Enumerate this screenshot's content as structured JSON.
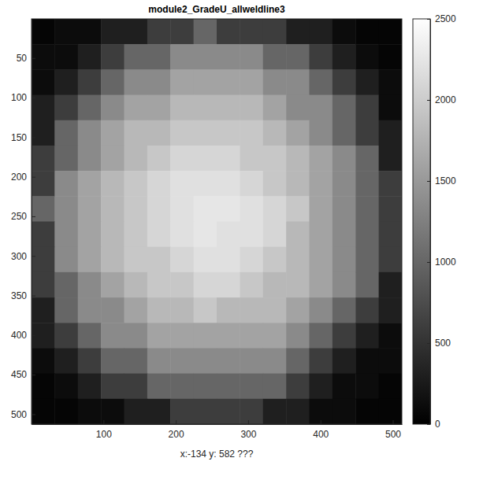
{
  "chart_data": {
    "type": "heatmap",
    "title": "module2_GradeU_allweldline3",
    "x_label": "x:-134 y: 582 ???",
    "xlim": [
      0.5,
      512.5
    ],
    "ylim": [
      0.5,
      512.5
    ],
    "xticks": [
      100,
      200,
      300,
      400,
      500
    ],
    "yticks": [
      50,
      100,
      150,
      200,
      250,
      300,
      350,
      400,
      450,
      500
    ],
    "x": [
      16.5,
      48.5,
      80.5,
      112.5,
      144.5,
      176.5,
      208.5,
      240.5,
      272.5,
      304.5,
      336.5,
      368.5,
      400.5,
      432.5,
      464.5,
      496.5
    ],
    "y": [
      16.5,
      48.5,
      80.5,
      112.5,
      144.5,
      176.5,
      208.5,
      240.5,
      272.5,
      304.5,
      336.5,
      368.5,
      400.5,
      432.5,
      464.5,
      496.5
    ],
    "cells": [
      [
        50,
        120,
        120,
        300,
        300,
        600,
        600,
        1000,
        600,
        600,
        600,
        300,
        300,
        120,
        50,
        50
      ],
      [
        120,
        120,
        300,
        600,
        1000,
        1000,
        1350,
        1350,
        1350,
        1350,
        1000,
        1000,
        600,
        300,
        120,
        50
      ],
      [
        120,
        300,
        600,
        1000,
        1350,
        1350,
        1600,
        1600,
        1600,
        1600,
        1350,
        1350,
        1000,
        600,
        300,
        120
      ],
      [
        300,
        600,
        1000,
        1350,
        1600,
        1600,
        1800,
        1800,
        1800,
        1800,
        1600,
        1350,
        1350,
        1000,
        600,
        120
      ],
      [
        300,
        1000,
        1350,
        1600,
        1800,
        1800,
        1950,
        1950,
        1950,
        1950,
        1800,
        1600,
        1350,
        1000,
        600,
        300
      ],
      [
        600,
        1000,
        1350,
        1600,
        1800,
        1950,
        2100,
        2100,
        2100,
        1950,
        1950,
        1800,
        1600,
        1350,
        1000,
        300
      ],
      [
        600,
        1350,
        1600,
        1800,
        1950,
        2100,
        2200,
        2200,
        2200,
        2100,
        1950,
        1800,
        1600,
        1350,
        1000,
        600
      ],
      [
        1000,
        1350,
        1600,
        1800,
        1950,
        2100,
        2200,
        2250,
        2250,
        2200,
        2100,
        1950,
        1600,
        1350,
        1000,
        600
      ],
      [
        600,
        1350,
        1600,
        1800,
        1950,
        2100,
        2200,
        2250,
        2200,
        2200,
        2100,
        1800,
        1600,
        1350,
        1000,
        600
      ],
      [
        600,
        1350,
        1600,
        1800,
        1950,
        1950,
        2100,
        2200,
        2200,
        2100,
        1950,
        1800,
        1600,
        1350,
        1000,
        600
      ],
      [
        600,
        1000,
        1350,
        1600,
        1800,
        1950,
        1950,
        2100,
        2100,
        1950,
        1800,
        1800,
        1600,
        1350,
        1000,
        300
      ],
      [
        300,
        1000,
        1350,
        1350,
        1600,
        1800,
        1800,
        1950,
        1800,
        1800,
        1800,
        1600,
        1350,
        1000,
        600,
        300
      ],
      [
        300,
        600,
        1000,
        1350,
        1350,
        1600,
        1600,
        1600,
        1600,
        1600,
        1600,
        1350,
        1000,
        600,
        300,
        120
      ],
      [
        120,
        300,
        600,
        1000,
        1000,
        1350,
        1350,
        1350,
        1350,
        1350,
        1350,
        1000,
        600,
        300,
        120,
        120
      ],
      [
        50,
        120,
        300,
        600,
        600,
        1000,
        1000,
        1000,
        1000,
        1000,
        1000,
        600,
        300,
        120,
        120,
        50
      ],
      [
        50,
        50,
        120,
        120,
        300,
        300,
        600,
        600,
        600,
        600,
        300,
        300,
        120,
        120,
        50,
        50
      ]
    ],
    "colorbar_range": [
      0,
      2500
    ],
    "colorbar_ticks": [
      0,
      500,
      1000,
      1500,
      2000,
      2500
    ]
  }
}
